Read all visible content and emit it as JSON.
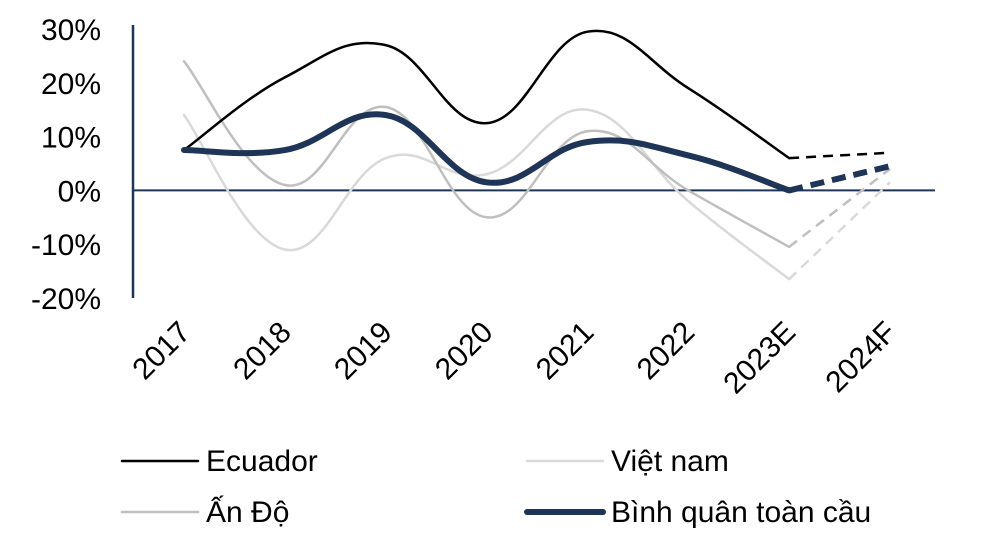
{
  "chart_data": {
    "type": "line",
    "title": "",
    "xlabel": "",
    "ylabel": "",
    "categories": [
      "2017",
      "2018",
      "2019",
      "2020",
      "2021",
      "2022",
      "2023E",
      "2024F"
    ],
    "ylim": [
      -20,
      30
    ],
    "yticks": [
      30,
      20,
      10,
      0,
      -10,
      -20
    ],
    "ytick_labels": [
      "30%",
      "20%",
      "10%",
      "0%",
      "-10%",
      "-20%"
    ],
    "grid": false,
    "legend_position": "bottom",
    "forecast_from_index": 6,
    "series": [
      {
        "name": "Ecuador",
        "color": "#000000",
        "width": 2.5,
        "values": [
          7.5,
          21,
          27,
          12.5,
          29.5,
          19,
          6,
          7
        ]
      },
      {
        "name": "Việt nam",
        "color": "#d9d9d9",
        "width": 2.5,
        "values": [
          14,
          -11,
          6,
          3,
          15,
          -2,
          -16.5,
          1.5
        ]
      },
      {
        "name": "Ấn Độ",
        "color": "#bfbfbf",
        "width": 2.5,
        "values": [
          24,
          1,
          15.5,
          -5,
          11,
          0,
          -10.5,
          4
        ]
      },
      {
        "name": "Bình quân toàn cầu",
        "color": "#1f3557",
        "width": 6,
        "values": [
          7.5,
          7.5,
          14,
          1.5,
          9,
          6.5,
          0,
          4.5
        ]
      }
    ]
  }
}
